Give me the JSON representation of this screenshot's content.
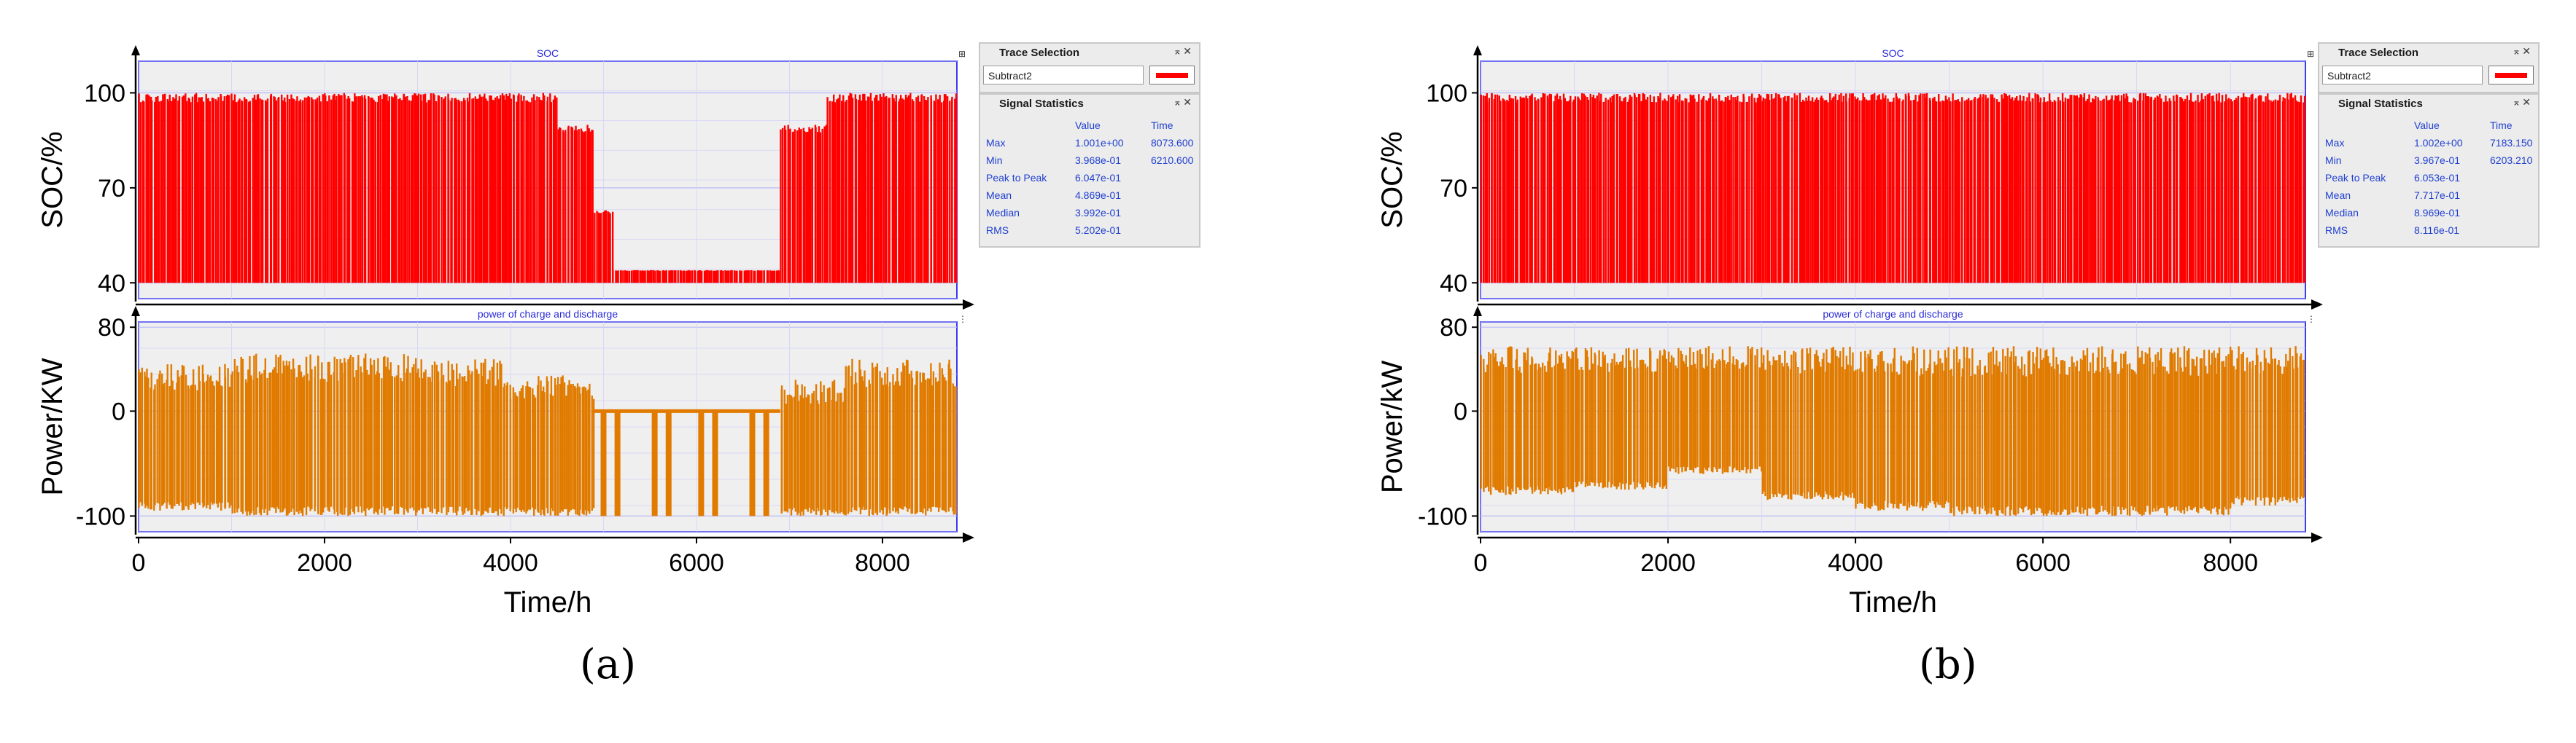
{
  "chart_data": [
    {
      "type": "line",
      "panel": "a",
      "subplots": [
        {
          "title": "SOC",
          "ylabel": "SOC/%",
          "ylim": [
            35,
            110
          ],
          "yticks": [
            {
              "v": 40,
              "label": "40"
            },
            {
              "v": 70,
              "label": "70"
            },
            {
              "v": 100,
              "label": "100"
            }
          ],
          "color": "#ff0000",
          "range": [
            40,
            100
          ],
          "segments": [
            {
              "from": 0,
              "to": 50,
              "lo": 40,
              "hi": 100
            },
            {
              "from": 50,
              "to": 300,
              "lo": 40,
              "hi": 100
            },
            {
              "from": 300,
              "to": 800,
              "lo": 40,
              "hi": 100
            },
            {
              "from": 800,
              "to": 2800,
              "lo": 40,
              "hi": 100
            },
            {
              "from": 2800,
              "to": 4500,
              "lo": 40,
              "hi": 100
            },
            {
              "from": 4500,
              "to": 4900,
              "lo": 40,
              "hi": 90
            },
            {
              "from": 4900,
              "to": 5100,
              "lo": 40,
              "hi": 63
            },
            {
              "from": 5100,
              "to": 6900,
              "lo": 40,
              "hi": 44
            },
            {
              "from": 6900,
              "to": 7400,
              "lo": 40,
              "hi": 90
            },
            {
              "from": 7400,
              "to": 8800,
              "lo": 40,
              "hi": 100
            }
          ]
        },
        {
          "title": "power of charge and discharge",
          "ylabel": "Power/KW",
          "ylim": [
            -115,
            85
          ],
          "yticks": [
            {
              "v": 80,
              "label": "80"
            },
            {
              "v": 0,
              "label": "0"
            },
            {
              "v": -100,
              "label": "-100"
            }
          ],
          "color": "#e07b00",
          "segments": [
            {
              "from": 0,
              "to": 1000,
              "lo": -95,
              "hi": 45
            },
            {
              "from": 1000,
              "to": 2000,
              "lo": -100,
              "hi": 55
            },
            {
              "from": 2000,
              "to": 3000,
              "lo": -100,
              "hi": 55
            },
            {
              "from": 3000,
              "to": 4000,
              "lo": -100,
              "hi": 50
            },
            {
              "from": 4000,
              "to": 4900,
              "lo": -100,
              "hi": 35
            },
            {
              "from": 4900,
              "to": 6900,
              "lo": 0,
              "hi": 0
            },
            {
              "from": 6900,
              "to": 7600,
              "lo": -100,
              "hi": 30
            },
            {
              "from": 7600,
              "to": 8800,
              "lo": -100,
              "hi": 50
            }
          ],
          "spikes": [
            5000,
            5150,
            5550,
            5700,
            6050,
            6200,
            6600,
            6750
          ]
        }
      ],
      "x": {
        "label": "Time/h",
        "xlim": [
          0,
          8800
        ],
        "ticks": [
          0,
          2000,
          4000,
          6000,
          8000
        ]
      },
      "signal_statistics": {
        "title": "Signal Statistics",
        "col_value": "Value",
        "col_time": "Time",
        "rows": [
          {
            "name": "Max",
            "value": "1.001e+00",
            "time": "8073.600"
          },
          {
            "name": "Min",
            "value": "3.968e-01",
            "time": "6210.600"
          },
          {
            "name": "Peak to Peak",
            "value": "6.047e-01",
            "time": ""
          },
          {
            "name": "Mean",
            "value": "4.869e-01",
            "time": ""
          },
          {
            "name": "Median",
            "value": "3.992e-01",
            "time": ""
          },
          {
            "name": "RMS",
            "value": "5.202e-01",
            "time": ""
          }
        ]
      },
      "trace_selection": {
        "title": "Trace Selection",
        "value": "Subtract2"
      },
      "caption": "(a)"
    },
    {
      "type": "line",
      "panel": "b",
      "subplots": [
        {
          "title": "SOC",
          "ylabel": "SOC/%",
          "ylim": [
            35,
            110
          ],
          "yticks": [
            {
              "v": 40,
              "label": "40"
            },
            {
              "v": 70,
              "label": "70"
            },
            {
              "v": 100,
              "label": "100"
            }
          ],
          "color": "#ff0000",
          "range": [
            40,
            100
          ],
          "segments": [
            {
              "from": 0,
              "to": 8800,
              "lo": 40,
              "hi": 100
            }
          ]
        },
        {
          "title": "power of charge and discharge",
          "ylabel": "Power/kW",
          "ylim": [
            -115,
            85
          ],
          "yticks": [
            {
              "v": 80,
              "label": "80"
            },
            {
              "v": 0,
              "label": "0"
            },
            {
              "v": -100,
              "label": "-100"
            }
          ],
          "color": "#e07b00",
          "segments": [
            {
              "from": 0,
              "to": 1000,
              "lo": -80,
              "hi": 62
            },
            {
              "from": 1000,
              "to": 2000,
              "lo": -75,
              "hi": 62
            },
            {
              "from": 2000,
              "to": 3000,
              "lo": -60,
              "hi": 62
            },
            {
              "from": 3000,
              "to": 4000,
              "lo": -85,
              "hi": 62
            },
            {
              "from": 4000,
              "to": 5000,
              "lo": -95,
              "hi": 62
            },
            {
              "from": 5000,
              "to": 6000,
              "lo": -100,
              "hi": 62
            },
            {
              "from": 6000,
              "to": 7000,
              "lo": -100,
              "hi": 62
            },
            {
              "from": 7000,
              "to": 8000,
              "lo": -100,
              "hi": 62
            },
            {
              "from": 8000,
              "to": 8800,
              "lo": -90,
              "hi": 62
            }
          ],
          "spikes": []
        }
      ],
      "x": {
        "label": "Time/h",
        "xlim": [
          0,
          8800
        ],
        "ticks": [
          0,
          2000,
          4000,
          6000,
          8000
        ]
      },
      "signal_statistics": {
        "title": "Signal Statistics",
        "col_value": "Value",
        "col_time": "Time",
        "rows": [
          {
            "name": "Max",
            "value": "1.002e+00",
            "time": "7183.150"
          },
          {
            "name": "Min",
            "value": "3.967e-01",
            "time": "6203.210"
          },
          {
            "name": "Peak to Peak",
            "value": "6.053e-01",
            "time": ""
          },
          {
            "name": "Mean",
            "value": "7.717e-01",
            "time": ""
          },
          {
            "name": "Median",
            "value": "8.969e-01",
            "time": ""
          },
          {
            "name": "RMS",
            "value": "8.116e-01",
            "time": ""
          }
        ]
      },
      "trace_selection": {
        "title": "Trace Selection",
        "value": "Subtract2"
      },
      "caption": "(b)"
    }
  ]
}
